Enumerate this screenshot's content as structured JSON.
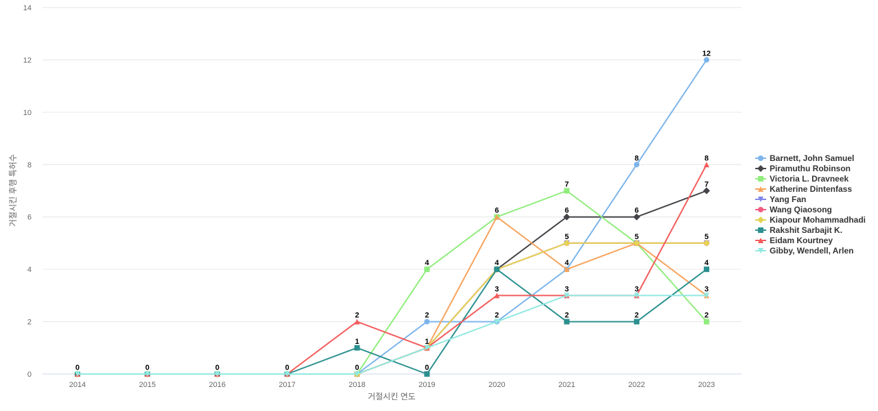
{
  "chart_data": {
    "type": "line",
    "title": "",
    "xlabel": "거절시킨 연도",
    "ylabel": "거절시킨 후행 특허수",
    "x": [
      "2014",
      "2015",
      "2016",
      "2017",
      "2018",
      "2019",
      "2020",
      "2021",
      "2022",
      "2023"
    ],
    "ylim": [
      0,
      14
    ],
    "yticks": [
      0,
      2,
      4,
      6,
      8,
      10,
      12,
      14
    ],
    "grid": true,
    "legend_position": "right",
    "series": [
      {
        "name": "Barnett, John Samuel",
        "color": "#7cb5ec",
        "marker": "circle",
        "values": [
          0,
          0,
          0,
          0,
          0,
          2,
          2,
          4,
          8,
          12
        ]
      },
      {
        "name": "Piramuthu Robinson",
        "color": "#434348",
        "marker": "diamond",
        "values": [
          0,
          0,
          0,
          0,
          0,
          1,
          4,
          6,
          6,
          7
        ]
      },
      {
        "name": "Victoria L. Dravneek",
        "color": "#90ed7d",
        "marker": "square",
        "values": [
          0,
          0,
          0,
          0,
          0,
          4,
          6,
          7,
          5,
          2
        ]
      },
      {
        "name": "Katherine Dintenfass",
        "color": "#f7a35c",
        "marker": "triangle",
        "values": [
          0,
          0,
          0,
          0,
          0,
          1,
          6,
          4,
          5,
          3
        ]
      },
      {
        "name": "Yang Fan",
        "color": "#8085e9",
        "marker": "triangle-down",
        "values": [
          0,
          0,
          0,
          0,
          0,
          1,
          4,
          5,
          5,
          5
        ]
      },
      {
        "name": "Wang Qiaosong",
        "color": "#f15c80",
        "marker": "circle",
        "values": [
          0,
          0,
          0,
          0,
          0,
          1,
          4,
          5,
          5,
          5
        ]
      },
      {
        "name": "Kiapour Mohammadhadi",
        "color": "#e4d354",
        "marker": "diamond",
        "values": [
          0,
          0,
          0,
          0,
          0,
          1,
          4,
          5,
          5,
          5
        ]
      },
      {
        "name": "Rakshit Sarbajit K.",
        "color": "#2b908f",
        "marker": "square",
        "values": [
          0,
          0,
          0,
          0,
          1,
          0,
          4,
          2,
          2,
          4
        ]
      },
      {
        "name": "Eidam Kourtney",
        "color": "#f45b5b",
        "marker": "triangle",
        "values": [
          0,
          0,
          0,
          0,
          2,
          1,
          3,
          3,
          3,
          8
        ]
      },
      {
        "name": "Gibby, Wendell, Arlen",
        "color": "#91e8e1",
        "marker": "triangle-down",
        "values": [
          0,
          0,
          0,
          0,
          0,
          1,
          2,
          3,
          3,
          3
        ]
      }
    ],
    "data_labels": [
      {
        "x": "2014",
        "value": "0",
        "series": "Barnett, John Samuel"
      },
      {
        "x": "2015",
        "value": "0",
        "series": "Barnett, John Samuel"
      },
      {
        "x": "2016",
        "value": "0",
        "series": "Barnett, John Samuel"
      },
      {
        "x": "2017",
        "value": "0",
        "series": "Barnett, John Samuel"
      },
      {
        "x": "2018",
        "value": "0",
        "series": "Barnett, John Samuel"
      },
      {
        "x": "2018",
        "value": "1",
        "series": "Rakshit Sarbajit K."
      },
      {
        "x": "2018",
        "value": "2",
        "series": "Eidam Kourtney"
      },
      {
        "x": "2019",
        "value": "0",
        "series": "Rakshit Sarbajit K."
      },
      {
        "x": "2019",
        "value": "1",
        "series": "Piramuthu Robinson"
      },
      {
        "x": "2019",
        "value": "2",
        "series": "Barnett, John Samuel"
      },
      {
        "x": "2019",
        "value": "4",
        "series": "Victoria L. Dravneek"
      },
      {
        "x": "2020",
        "value": "2",
        "series": "Barnett, John Samuel"
      },
      {
        "x": "2020",
        "value": "3",
        "series": "Eidam Kourtney"
      },
      {
        "x": "2020",
        "value": "4",
        "series": "Piramuthu Robinson"
      },
      {
        "x": "2020",
        "value": "6",
        "series": "Victoria L. Dravneek"
      },
      {
        "x": "2021",
        "value": "2",
        "series": "Rakshit Sarbajit K."
      },
      {
        "x": "2021",
        "value": "3",
        "series": "Eidam Kourtney"
      },
      {
        "x": "2021",
        "value": "4",
        "series": "Katherine Dintenfass"
      },
      {
        "x": "2021",
        "value": "5",
        "series": "Yang Fan"
      },
      {
        "x": "2021",
        "value": "6",
        "series": "Piramuthu Robinson"
      },
      {
        "x": "2021",
        "value": "7",
        "series": "Victoria L. Dravneek"
      },
      {
        "x": "2022",
        "value": "2",
        "series": "Rakshit Sarbajit K."
      },
      {
        "x": "2022",
        "value": "3",
        "series": "Eidam Kourtney"
      },
      {
        "x": "2022",
        "value": "5",
        "series": "Katherine Dintenfass"
      },
      {
        "x": "2022",
        "value": "6",
        "series": "Piramuthu Robinson"
      },
      {
        "x": "2022",
        "value": "8",
        "series": "Barnett, John Samuel"
      },
      {
        "x": "2023",
        "value": "2",
        "series": "Victoria L. Dravneek"
      },
      {
        "x": "2023",
        "value": "3",
        "series": "Katherine Dintenfass"
      },
      {
        "x": "2023",
        "value": "4",
        "series": "Rakshit Sarbajit K."
      },
      {
        "x": "2023",
        "value": "5",
        "series": "Yang Fan"
      },
      {
        "x": "2023",
        "value": "7",
        "series": "Piramuthu Robinson"
      },
      {
        "x": "2023",
        "value": "8",
        "series": "Eidam Kourtney"
      },
      {
        "x": "2023",
        "value": "12",
        "series": "Barnett, John Samuel"
      }
    ]
  }
}
